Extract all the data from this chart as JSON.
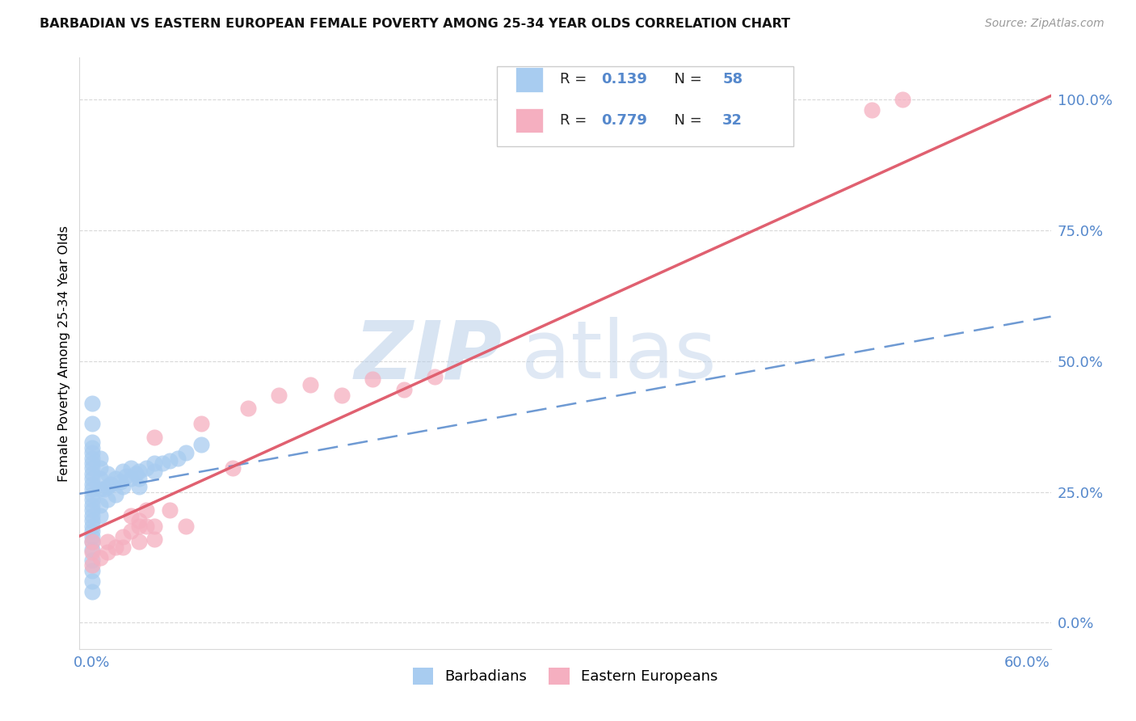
{
  "title": "BARBADIAN VS EASTERN EUROPEAN FEMALE POVERTY AMONG 25-34 YEAR OLDS CORRELATION CHART",
  "source": "Source: ZipAtlas.com",
  "ylabel": "Female Poverty Among 25-34 Year Olds",
  "xmin": -0.008,
  "xmax": 0.615,
  "ymin": -0.05,
  "ymax": 1.08,
  "yticks": [
    0.0,
    0.25,
    0.5,
    0.75,
    1.0
  ],
  "ytick_labels": [
    "0.0%",
    "25.0%",
    "50.0%",
    "75.0%",
    "100.0%"
  ],
  "xticks": [
    0.0,
    0.1,
    0.2,
    0.3,
    0.4,
    0.5,
    0.6
  ],
  "xtick_labels": [
    "0.0%",
    "",
    "",
    "",
    "",
    "",
    "60.0%"
  ],
  "blue_scatter": "#a8ccf0",
  "pink_scatter": "#f5afc0",
  "blue_line": "#5588cc",
  "pink_line": "#e06070",
  "axis_label_color": "#5588cc",
  "grid_color": "#d8d8d8",
  "title_color": "#111111",
  "source_color": "#999999",
  "barbadians_x": [
    0.0,
    0.0,
    0.0,
    0.0,
    0.0,
    0.0,
    0.0,
    0.0,
    0.0,
    0.0,
    0.0,
    0.0,
    0.0,
    0.0,
    0.0,
    0.0,
    0.0,
    0.0,
    0.0,
    0.0,
    0.0,
    0.0,
    0.0,
    0.0,
    0.0,
    0.005,
    0.005,
    0.005,
    0.005,
    0.005,
    0.005,
    0.008,
    0.01,
    0.01,
    0.01,
    0.012,
    0.015,
    0.015,
    0.018,
    0.02,
    0.02,
    0.022,
    0.025,
    0.025,
    0.028,
    0.03,
    0.03,
    0.03,
    0.035,
    0.04,
    0.04,
    0.045,
    0.05,
    0.055,
    0.06,
    0.07,
    0.0,
    0.0
  ],
  "barbadians_y": [
    0.14,
    0.155,
    0.165,
    0.175,
    0.185,
    0.195,
    0.205,
    0.215,
    0.225,
    0.235,
    0.245,
    0.255,
    0.265,
    0.275,
    0.285,
    0.295,
    0.305,
    0.315,
    0.1,
    0.12,
    0.325,
    0.335,
    0.345,
    0.38,
    0.42,
    0.205,
    0.225,
    0.255,
    0.275,
    0.295,
    0.315,
    0.255,
    0.235,
    0.26,
    0.285,
    0.265,
    0.245,
    0.275,
    0.27,
    0.26,
    0.29,
    0.28,
    0.275,
    0.295,
    0.285,
    0.26,
    0.275,
    0.29,
    0.295,
    0.29,
    0.305,
    0.305,
    0.31,
    0.315,
    0.325,
    0.34,
    0.06,
    0.08
  ],
  "eastern_x": [
    0.0,
    0.0,
    0.0,
    0.005,
    0.01,
    0.01,
    0.015,
    0.02,
    0.02,
    0.025,
    0.03,
    0.03,
    0.035,
    0.04,
    0.04,
    0.05,
    0.06,
    0.07,
    0.09,
    0.1,
    0.12,
    0.14,
    0.16,
    0.18,
    0.2,
    0.22,
    0.5,
    0.52,
    0.025,
    0.03,
    0.035,
    0.04
  ],
  "eastern_y": [
    0.11,
    0.135,
    0.155,
    0.125,
    0.135,
    0.155,
    0.145,
    0.145,
    0.165,
    0.175,
    0.155,
    0.185,
    0.185,
    0.16,
    0.355,
    0.215,
    0.185,
    0.38,
    0.295,
    0.41,
    0.435,
    0.455,
    0.435,
    0.465,
    0.445,
    0.47,
    0.98,
    1.0,
    0.205,
    0.195,
    0.215,
    0.185
  ]
}
